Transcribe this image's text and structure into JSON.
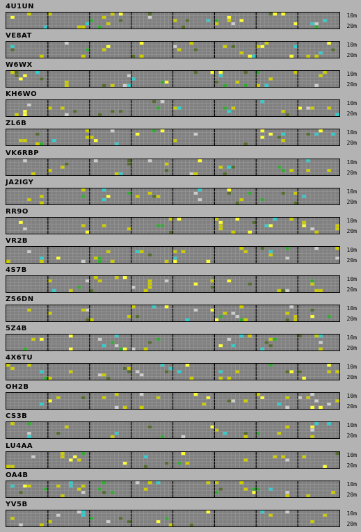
{
  "bands": {
    "top_label": "10m",
    "bottom_label": "20m"
  },
  "colors": {
    "grid_bg": "#808080",
    "grid_line": "#9a9a9a",
    "hour_divider": "#000000",
    "signal_yellow": "#cccc00",
    "signal_bright_yellow": "#ffff33",
    "signal_green": "#33aa33",
    "signal_cyan": "#33cccc",
    "signal_white": "#cccccc",
    "signal_dark": "#556b2f"
  },
  "beacons": [
    {
      "call": "4U1UN"
    },
    {
      "call": "VE8AT"
    },
    {
      "call": "W6WX"
    },
    {
      "call": "KH6WO"
    },
    {
      "call": "ZL6B"
    },
    {
      "call": "VK6RBP"
    },
    {
      "call": "JA2IGY"
    },
    {
      "call": "RR9O"
    },
    {
      "call": "VR2B"
    },
    {
      "call": "4S7B"
    },
    {
      "call": "ZS6DN"
    },
    {
      "call": "5Z4B"
    },
    {
      "call": "4X6TU"
    },
    {
      "call": "OH2B"
    },
    {
      "call": "CS3B"
    },
    {
      "call": "LU4AA"
    },
    {
      "call": "OA4B"
    },
    {
      "call": "YV5B"
    }
  ]
}
